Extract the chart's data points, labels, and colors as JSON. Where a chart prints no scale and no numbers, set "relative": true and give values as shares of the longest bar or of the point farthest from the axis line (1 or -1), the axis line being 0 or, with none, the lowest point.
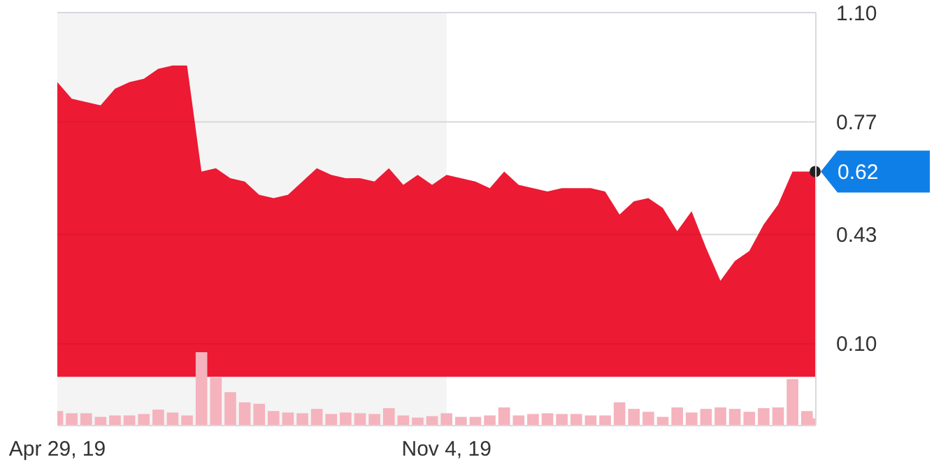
{
  "chart_data": [
    {
      "type": "area",
      "x": [
        "2019-04-29",
        "2019-05-06",
        "2019-05-13",
        "2019-05-20",
        "2019-05-27",
        "2019-06-03",
        "2019-06-10",
        "2019-06-17",
        "2019-06-24",
        "2019-07-01",
        "2019-07-08",
        "2019-07-15",
        "2019-07-22",
        "2019-07-29",
        "2019-08-05",
        "2019-08-12",
        "2019-08-19",
        "2019-08-26",
        "2019-09-02",
        "2019-09-09",
        "2019-09-16",
        "2019-09-23",
        "2019-09-30",
        "2019-10-07",
        "2019-10-14",
        "2019-10-21",
        "2019-10-28",
        "2019-11-04",
        "2019-11-11",
        "2019-11-18",
        "2019-11-25",
        "2019-12-02",
        "2019-12-09",
        "2019-12-16",
        "2019-12-23",
        "2019-12-30",
        "2020-01-06",
        "2020-01-13",
        "2020-01-20",
        "2020-01-27",
        "2020-02-03",
        "2020-02-10",
        "2020-02-17",
        "2020-02-24",
        "2020-03-02",
        "2020-03-09",
        "2020-03-16",
        "2020-03-23",
        "2020-03-30",
        "2020-04-06",
        "2020-04-13",
        "2020-04-20",
        "2020-04-27",
        "2020-05-01"
      ],
      "series": [
        {
          "color": "#ec1a33",
          "values": [
            0.89,
            0.84,
            0.83,
            0.82,
            0.87,
            0.89,
            0.9,
            0.93,
            0.94,
            0.94,
            0.62,
            0.63,
            0.6,
            0.59,
            0.55,
            0.54,
            0.55,
            0.59,
            0.63,
            0.61,
            0.6,
            0.6,
            0.59,
            0.63,
            0.58,
            0.61,
            0.58,
            0.61,
            0.6,
            0.59,
            0.57,
            0.62,
            0.58,
            0.57,
            0.56,
            0.57,
            0.57,
            0.57,
            0.56,
            0.49,
            0.53,
            0.54,
            0.51,
            0.44,
            0.5,
            0.39,
            0.29,
            0.35,
            0.38,
            0.46,
            0.52,
            0.62,
            0.62,
            0.62
          ]
        }
      ],
      "xlim": [
        "2019-04-29",
        "2020-05-01"
      ],
      "xticks": [
        {
          "value": "2019-04-29",
          "label": "Apr 29, 19"
        },
        {
          "value": "2019-11-04",
          "label": "Nov 4, 19"
        }
      ],
      "ylim": [
        -0.145,
        1.1
      ],
      "yticks": [
        {
          "value": 0.1,
          "label": "0.10"
        },
        0.43,
        0.77,
        {
          "value": 1.1,
          "label": "1.10"
        }
      ],
      "grid": "y",
      "bands": [
        {
          "axis": "x",
          "from": "2019-04-29",
          "to": "2019-11-04",
          "color": "#f4f4f4"
        }
      ],
      "annotations": [
        {
          "text": "0.62",
          "x": "2020-05-01",
          "y": 0.62
        }
      ]
    },
    {
      "type": "bar",
      "relative": true,
      "x": [
        "2019-04-29",
        "2019-05-06",
        "2019-05-13",
        "2019-05-20",
        "2019-05-27",
        "2019-06-03",
        "2019-06-10",
        "2019-06-17",
        "2019-06-24",
        "2019-07-01",
        "2019-07-08",
        "2019-07-15",
        "2019-07-22",
        "2019-07-29",
        "2019-08-05",
        "2019-08-12",
        "2019-08-19",
        "2019-08-26",
        "2019-09-02",
        "2019-09-09",
        "2019-09-16",
        "2019-09-23",
        "2019-09-30",
        "2019-10-07",
        "2019-10-14",
        "2019-10-21",
        "2019-10-28",
        "2019-11-04",
        "2019-11-11",
        "2019-11-18",
        "2019-11-25",
        "2019-12-02",
        "2019-12-09",
        "2019-12-16",
        "2019-12-23",
        "2019-12-30",
        "2020-01-06",
        "2020-01-13",
        "2020-01-20",
        "2020-01-27",
        "2020-02-03",
        "2020-02-10",
        "2020-02-17",
        "2020-02-24",
        "2020-03-02",
        "2020-03-09",
        "2020-03-16",
        "2020-03-23",
        "2020-03-30",
        "2020-04-06",
        "2020-04-13",
        "2020-04-20",
        "2020-04-27",
        "2020-05-01"
      ],
      "xlim": [
        "2019-04-29",
        "2020-05-01"
      ],
      "color": "#f4b3bd",
      "values": [
        0.19,
        0.16,
        0.16,
        0.11,
        0.13,
        0.13,
        0.15,
        0.21,
        0.17,
        0.13,
        1,
        0.65,
        0.45,
        0.31,
        0.29,
        0.19,
        0.17,
        0.16,
        0.22,
        0.15,
        0.17,
        0.16,
        0.15,
        0.23,
        0.13,
        0.1,
        0.12,
        0.16,
        0.11,
        0.11,
        0.13,
        0.24,
        0.13,
        0.15,
        0.16,
        0.15,
        0.15,
        0.13,
        0.13,
        0.31,
        0.22,
        0.18,
        0.11,
        0.24,
        0.17,
        0.22,
        0.24,
        0.22,
        0.18,
        0.23,
        0.24,
        0.63,
        0.19,
        0.09
      ]
    }
  ]
}
